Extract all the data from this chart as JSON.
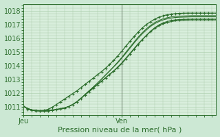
{
  "title": "Pression niveau de la mer( hPa )",
  "bg_color": "#cce8d4",
  "plot_bg_color": "#d8eedc",
  "grid_color": "#aaccaa",
  "line_color": "#2d6e2d",
  "vline_color": "#556655",
  "ylim": [
    1010.4,
    1018.5
  ],
  "xlim": [
    0,
    47
  ],
  "yticks": [
    1011,
    1012,
    1013,
    1014,
    1015,
    1016,
    1017,
    1018
  ],
  "xtick_positions": [
    0,
    24
  ],
  "xtick_labels": [
    "Jeu",
    "Ven"
  ],
  "vline_x": 24,
  "n_hours": 48,
  "series": [
    [
      1011.0,
      1010.85,
      1010.75,
      1010.7,
      1010.7,
      1010.7,
      1010.7,
      1010.75,
      1010.8,
      1010.85,
      1010.9,
      1011.0,
      1011.15,
      1011.35,
      1011.6,
      1011.85,
      1012.1,
      1012.35,
      1012.6,
      1012.85,
      1013.1,
      1013.35,
      1013.6,
      1013.85,
      1014.15,
      1014.5,
      1014.85,
      1015.2,
      1015.55,
      1015.9,
      1016.2,
      1016.5,
      1016.75,
      1016.95,
      1017.1,
      1017.2,
      1017.28,
      1017.32,
      1017.35,
      1017.36,
      1017.37,
      1017.38,
      1017.38,
      1017.38,
      1017.38,
      1017.38,
      1017.38,
      1017.38
    ],
    [
      1011.0,
      1010.85,
      1010.75,
      1010.7,
      1010.68,
      1010.67,
      1010.68,
      1010.72,
      1010.77,
      1010.82,
      1010.9,
      1011.0,
      1011.15,
      1011.35,
      1011.6,
      1011.85,
      1012.1,
      1012.35,
      1012.6,
      1012.85,
      1013.1,
      1013.35,
      1013.6,
      1013.9,
      1014.2,
      1014.55,
      1014.9,
      1015.25,
      1015.6,
      1015.9,
      1016.2,
      1016.48,
      1016.7,
      1016.88,
      1017.02,
      1017.12,
      1017.2,
      1017.25,
      1017.28,
      1017.3,
      1017.31,
      1017.32,
      1017.32,
      1017.32,
      1017.32,
      1017.32,
      1017.32,
      1017.32
    ],
    [
      1011.0,
      1010.85,
      1010.75,
      1010.7,
      1010.68,
      1010.67,
      1010.68,
      1010.72,
      1010.77,
      1010.82,
      1010.9,
      1011.0,
      1011.15,
      1011.35,
      1011.6,
      1011.88,
      1012.15,
      1012.42,
      1012.7,
      1013.0,
      1013.3,
      1013.6,
      1013.9,
      1014.2,
      1014.55,
      1014.9,
      1015.28,
      1015.65,
      1016.0,
      1016.32,
      1016.6,
      1016.85,
      1017.05,
      1017.2,
      1017.32,
      1017.4,
      1017.46,
      1017.5,
      1017.52,
      1017.53,
      1017.54,
      1017.55,
      1017.55,
      1017.55,
      1017.55,
      1017.55,
      1017.55,
      1017.55
    ],
    [
      1011.0,
      1010.85,
      1010.75,
      1010.7,
      1010.68,
      1010.67,
      1010.68,
      1010.72,
      1010.77,
      1010.82,
      1010.9,
      1011.0,
      1011.15,
      1011.35,
      1011.6,
      1011.88,
      1012.15,
      1012.42,
      1012.7,
      1013.0,
      1013.3,
      1013.6,
      1013.92,
      1014.25,
      1014.6,
      1014.98,
      1015.35,
      1015.72,
      1016.08,
      1016.4,
      1016.68,
      1016.93,
      1017.13,
      1017.28,
      1017.4,
      1017.48,
      1017.54,
      1017.58,
      1017.6,
      1017.61,
      1017.62,
      1017.63,
      1017.63,
      1017.63,
      1017.63,
      1017.63,
      1017.63,
      1017.63
    ],
    [
      1011.05,
      1010.8,
      1010.75,
      1010.72,
      1010.7,
      1010.72,
      1010.8,
      1010.95,
      1011.15,
      1011.35,
      1011.55,
      1011.75,
      1011.95,
      1012.15,
      1012.38,
      1012.62,
      1012.85,
      1013.08,
      1013.32,
      1013.55,
      1013.8,
      1014.08,
      1014.38,
      1014.7,
      1015.05,
      1015.42,
      1015.78,
      1016.12,
      1016.45,
      1016.75,
      1017.0,
      1017.2,
      1017.38,
      1017.52,
      1017.62,
      1017.7,
      1017.75,
      1017.78,
      1017.8,
      1017.81,
      1017.82,
      1017.82,
      1017.82,
      1017.82,
      1017.82,
      1017.82,
      1017.82,
      1017.82
    ]
  ],
  "marker_series_indices": [
    0,
    4
  ],
  "font_color": "#2d6e2d",
  "tick_fontsize": 7,
  "label_fontsize": 8
}
